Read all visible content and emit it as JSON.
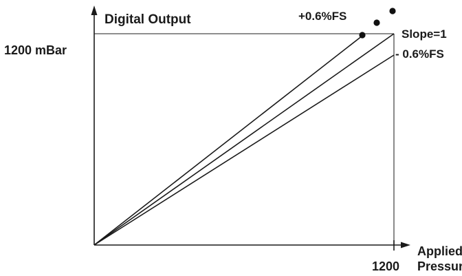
{
  "diagram": {
    "y_axis_label": "Digital Output",
    "y_max_label": "1200 mBar",
    "x_axis_label_line1": "Applied",
    "x_axis_label_line2": "Pressure",
    "x_max_label": "1200",
    "lines": [
      {
        "label": "+0.6%FS",
        "slope": 1.006
      },
      {
        "label": "Slope=1",
        "slope": 1.0
      },
      {
        "label": "- 0.6%FS",
        "slope": 0.994
      }
    ]
  }
}
